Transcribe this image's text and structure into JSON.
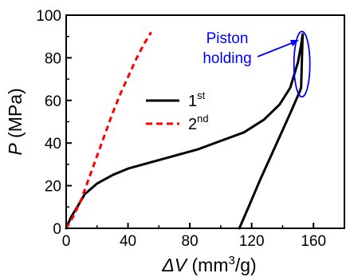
{
  "chart_data": {
    "type": "line",
    "xlabel_symbol": "ΔV",
    "xlabel_unit_pre": " (mm",
    "xlabel_unit_sup": "3",
    "xlabel_unit_post": "/g)",
    "ylabel_symbol": "P",
    "ylabel_unit": " (MPa)",
    "xlim": [
      0,
      180
    ],
    "ylim": [
      0,
      100
    ],
    "xticks": [
      0,
      40,
      80,
      120,
      160
    ],
    "yticks": [
      0,
      20,
      40,
      60,
      80,
      100
    ],
    "xtick_labels": [
      "0",
      "40",
      "80",
      "120",
      "160"
    ],
    "ytick_labels": [
      "0",
      "20",
      "40",
      "60",
      "80",
      "100"
    ],
    "legend_position": "center",
    "series": [
      {
        "name_main": "1",
        "name_sup": "st",
        "color": "#000000",
        "dash": "solid",
        "x": [
          0,
          3,
          8,
          12,
          20,
          30,
          40,
          55,
          70,
          85,
          100,
          115,
          128,
          138,
          145,
          150,
          152,
          153,
          153,
          152,
          151,
          145,
          135,
          125,
          118,
          112
        ],
        "y": [
          0,
          5,
          11,
          16,
          21,
          25,
          28,
          31,
          34,
          37,
          41,
          45,
          51,
          58,
          66,
          78,
          86,
          91,
          91,
          66,
          64,
          54,
          38,
          22,
          10,
          0
        ]
      },
      {
        "name_main": "2",
        "name_sup": "nd",
        "color": "#ff0000",
        "dash": "dashed",
        "x": [
          0,
          5,
          10,
          15,
          20,
          25,
          30,
          35,
          40,
          45,
          50,
          55
        ],
        "y": [
          0,
          6,
          14,
          24,
          34,
          44,
          54,
          63,
          71,
          79,
          86,
          92
        ]
      }
    ],
    "annotation": {
      "text_line1": "Piston",
      "text_line2": "holding",
      "color": "#0000ff",
      "target_x": 152,
      "target_y": 88
    }
  }
}
